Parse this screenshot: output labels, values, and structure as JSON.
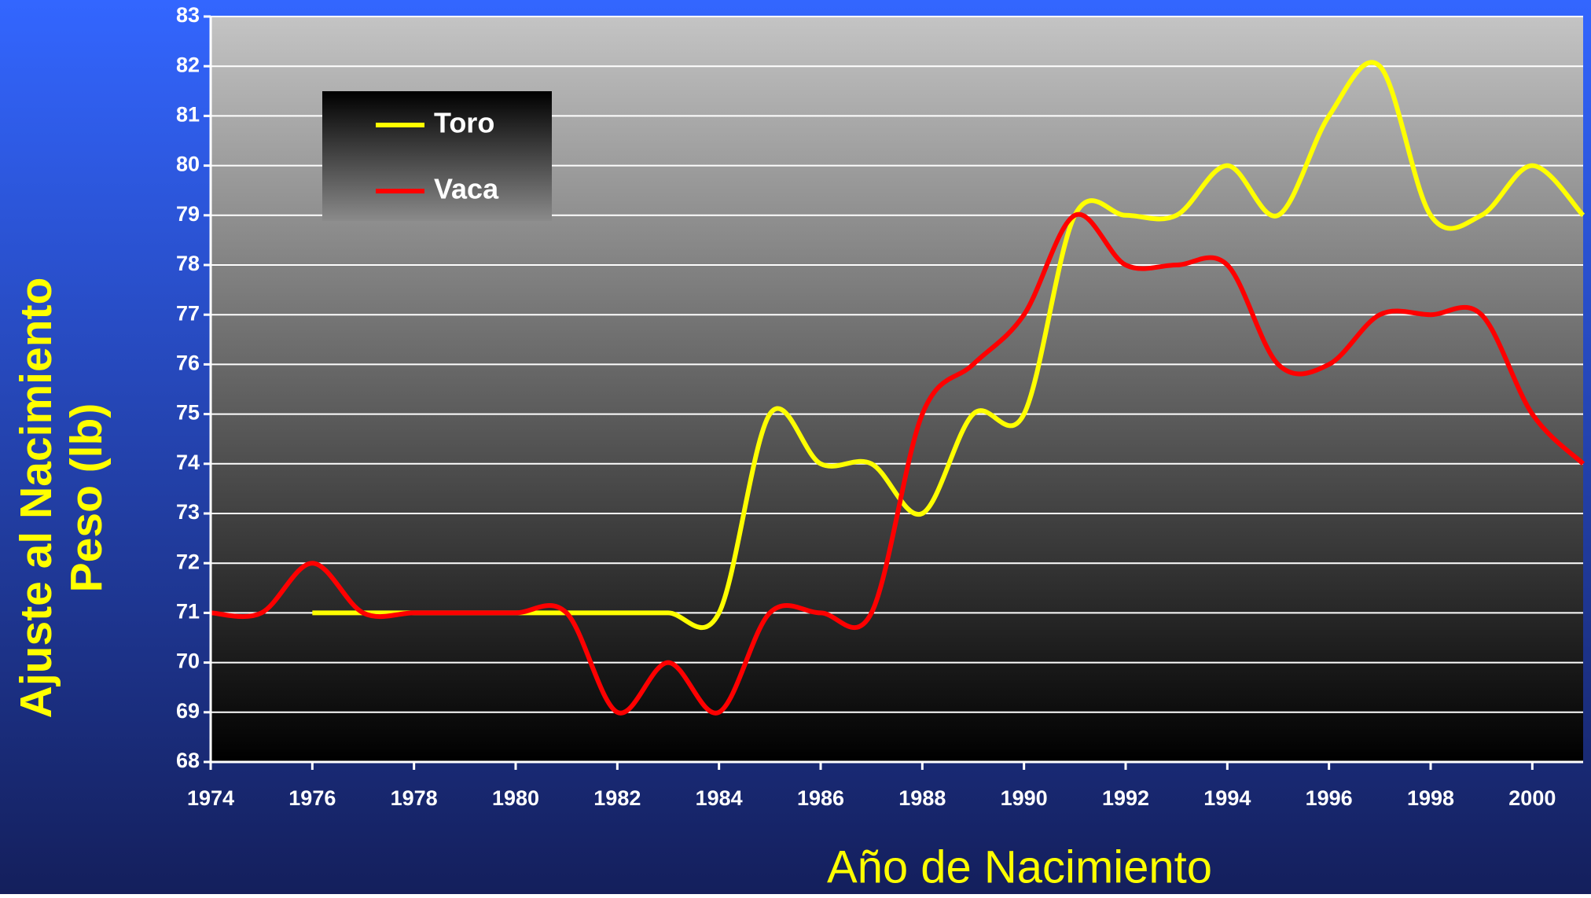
{
  "chart_data": {
    "type": "line",
    "y_label_lines": [
      "Ajuste al Nacimiento",
      "Peso (lb)"
    ],
    "x_label": "Año de Nacimiento",
    "x": [
      1974,
      1975,
      1976,
      1977,
      1978,
      1979,
      1980,
      1981,
      1982,
      1983,
      1984,
      1985,
      1986,
      1987,
      1988,
      1989,
      1990,
      1991,
      1992,
      1993,
      1994,
      1995,
      1996,
      1997,
      1998,
      1999,
      2000,
      2001
    ],
    "series": [
      {
        "name": "Toro",
        "color": "#ffff00",
        "values": [
          null,
          null,
          71,
          71,
          71,
          71,
          71,
          71,
          71,
          71,
          71,
          75,
          74,
          74,
          73,
          75,
          75,
          79,
          79,
          79,
          80,
          79,
          81,
          82,
          79,
          79,
          80,
          79
        ]
      },
      {
        "name": "Vaca",
        "color": "#ff0000",
        "values": [
          71,
          71,
          72,
          71,
          71,
          71,
          71,
          71,
          69,
          70,
          69,
          71,
          71,
          71,
          75,
          76,
          77,
          79,
          78,
          78,
          78,
          76,
          76,
          77,
          77,
          77,
          75,
          74
        ]
      }
    ],
    "xlim": [
      1974,
      2001
    ],
    "xticks": [
      1974,
      1976,
      1978,
      1980,
      1982,
      1984,
      1986,
      1988,
      1990,
      1992,
      1994,
      1996,
      1998,
      2000
    ],
    "ylim": [
      68,
      83
    ],
    "yticks": [
      68,
      69,
      70,
      71,
      72,
      73,
      74,
      75,
      76,
      77,
      78,
      79,
      80,
      81,
      82,
      83
    ],
    "grid": true,
    "legend": "upper left"
  }
}
